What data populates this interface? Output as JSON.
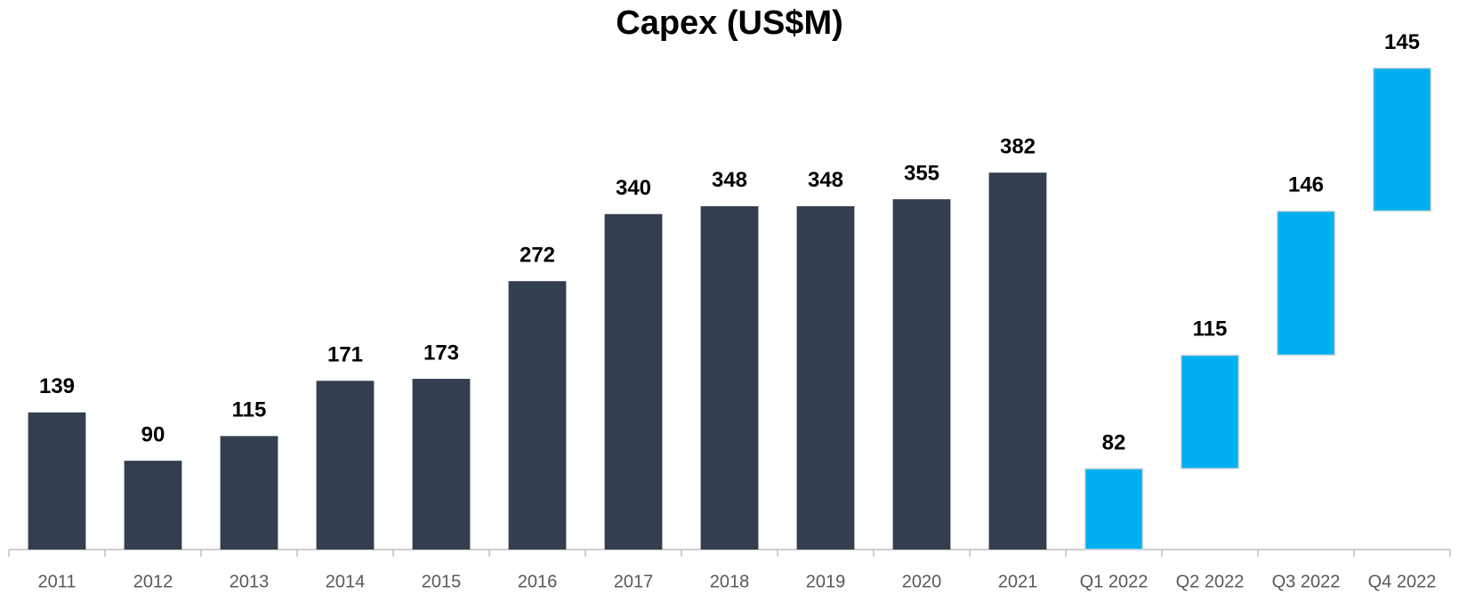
{
  "chart_data": {
    "type": "waterfall",
    "title": "Capex (US$M)",
    "categories": [
      "2011",
      "2012",
      "2013",
      "2014",
      "2015",
      "2016",
      "2017",
      "2018",
      "2019",
      "2020",
      "2021",
      "Q1 2022",
      "Q2 2022",
      "Q3 2022",
      "Q4 2022"
    ],
    "values": [
      139,
      90,
      115,
      171,
      173,
      272,
      340,
      348,
      348,
      355,
      382,
      82,
      115,
      146,
      145
    ],
    "colors": [
      "#333f50",
      "#333f50",
      "#333f50",
      "#333f50",
      "#333f50",
      "#333f50",
      "#333f50",
      "#333f50",
      "#333f50",
      "#333f50",
      "#333f50",
      "#00b0f0",
      "#00b0f0",
      "#00b0f0",
      "#00b0f0"
    ],
    "stack": [
      false,
      false,
      false,
      false,
      false,
      false,
      false,
      false,
      false,
      false,
      false,
      true,
      true,
      true,
      true
    ],
    "ylim": [
      0,
      520
    ],
    "grid": false
  }
}
